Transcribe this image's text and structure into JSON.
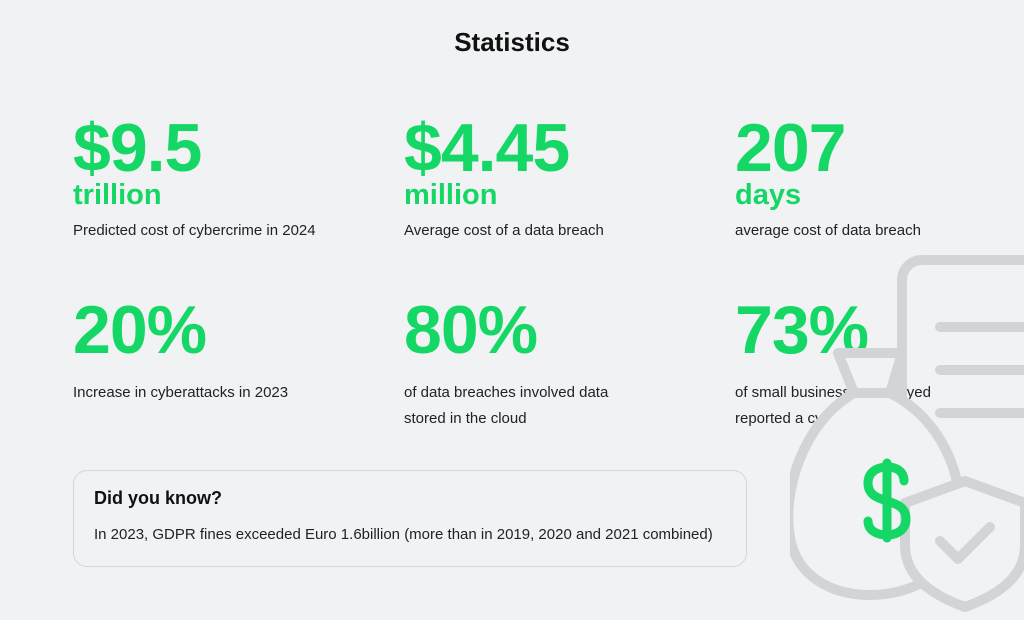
{
  "title": "Statistics",
  "stats": [
    {
      "value": "$9.5",
      "unit": "trillion",
      "description": "Predicted cost of cybercrime in 2024"
    },
    {
      "value": "$4.45",
      "unit": "million",
      "description": "Average cost of a data breach"
    },
    {
      "value": "207",
      "unit": "days",
      "description": "average cost of data breach"
    },
    {
      "value": "20%",
      "description": "Increase in cyberattacks in 2023"
    },
    {
      "value": "80%",
      "description": "of data breaches involved data stored in the cloud"
    },
    {
      "value": "73%",
      "description": "of small businesses surveyed reported a cyberattack"
    }
  ],
  "callout": {
    "heading": "Did you know?",
    "text": "In 2023, GDPR fines exceeded Euro 1.6billion (more than in 2019, 2020 and 2021 combined)"
  },
  "illustration": {
    "icons": [
      "document-icon",
      "money-bag-icon",
      "dollar-sign-icon",
      "shield-check-icon"
    ],
    "accent_color": "#14d765",
    "outline_color": "#d3d4d7"
  }
}
